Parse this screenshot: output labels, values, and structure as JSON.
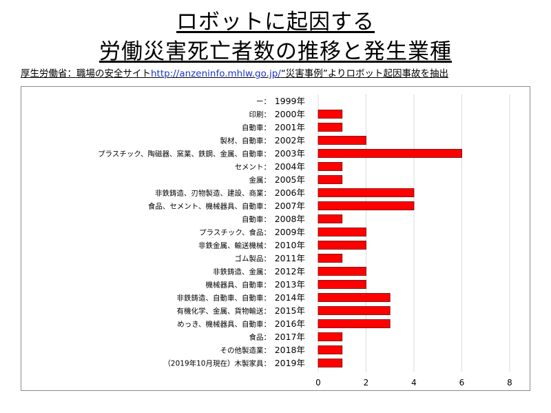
{
  "title_line1": "ロボットに起因する",
  "title_line2": "労働災害死亡者数の推移と発生業種",
  "source": {
    "prefix": "厚生労働省：職場の安全サイト",
    "link": "http://anzeninfo.mhlw.go.jp/",
    "suffix": "“災害事例”よりロボット起因事故を抽出"
  },
  "chart_data": {
    "type": "bar",
    "orientation": "horizontal",
    "categories": [
      {
        "industry": "ー",
        "year": "1999年"
      },
      {
        "industry": "印刷",
        "year": "2000年"
      },
      {
        "industry": "自動車",
        "year": "2001年"
      },
      {
        "industry": "製材、自動車",
        "year": "2002年"
      },
      {
        "industry": "プラスチック、陶磁器、窯業、鉄鋼、金属、自動車",
        "year": "2003年"
      },
      {
        "industry": "セメント",
        "year": "2004年"
      },
      {
        "industry": "金属",
        "year": "2005年"
      },
      {
        "industry": "非鉄鋳造、刃物製造、建設、商業",
        "year": "2006年"
      },
      {
        "industry": "食品、セメント、機械器具、自動車",
        "year": "2007年"
      },
      {
        "industry": "自動車",
        "year": "2008年"
      },
      {
        "industry": "プラスチック、食品",
        "year": "2009年"
      },
      {
        "industry": "非鉄金属、輸送機械",
        "year": "2010年"
      },
      {
        "industry": "ゴム製品",
        "year": "2011年"
      },
      {
        "industry": "非鉄鋳造、金属",
        "year": "2012年"
      },
      {
        "industry": "機械器具、自動車",
        "year": "2013年"
      },
      {
        "industry": "非鉄鋳造、自動車、自動車",
        "year": "2014年"
      },
      {
        "industry": "有機化学、金属、貨物輸送",
        "year": "2015年"
      },
      {
        "industry": "めっき、機械器具、自動車",
        "year": "2016年"
      },
      {
        "industry": "食品",
        "year": "2017年"
      },
      {
        "industry": "その他製造業",
        "year": "2018年"
      },
      {
        "industry": "（2019年10月現在）木製家具",
        "year": "2019年"
      }
    ],
    "values": [
      0,
      1,
      1,
      2,
      6,
      1,
      1,
      4,
      4,
      1,
      2,
      2,
      1,
      2,
      2,
      3,
      3,
      3,
      1,
      1,
      1
    ],
    "xlim": [
      0,
      8
    ],
    "xticks": [
      "0",
      "2",
      "4",
      "6",
      "8"
    ],
    "grid": true,
    "bar_color": "#ff0000",
    "bar_edge_color": "#6b0000"
  }
}
